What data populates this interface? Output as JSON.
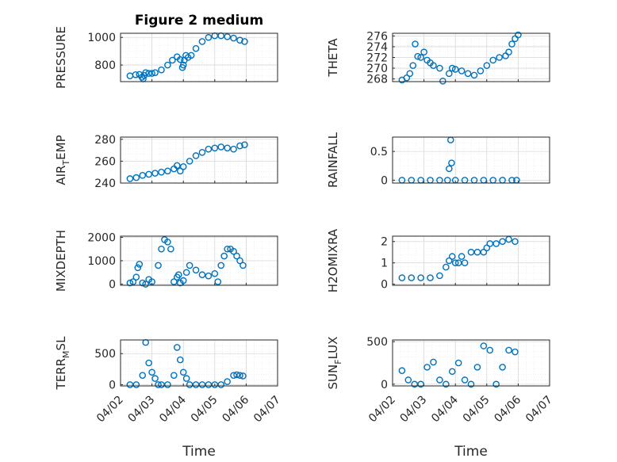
{
  "figure": {
    "title": "Figure 2 medium",
    "marker_color": "#0072BD",
    "x_axis": {
      "label": "Time",
      "ticks": [
        "04/02",
        "04/03",
        "04/04",
        "04/05",
        "04/06",
        "04/07"
      ],
      "xlim": [
        0,
        5
      ]
    }
  },
  "chart_data": [
    {
      "type": "scatter",
      "ylabel": "PRESSURE",
      "ylim": [
        680,
        1030
      ],
      "yticks": [
        800,
        1000
      ],
      "ylabel_sub": "",
      "ylabel_pre": "PRESSURE",
      "ylabel_post": "",
      "x": [
        0.3,
        0.48,
        0.6,
        0.68,
        0.72,
        0.75,
        0.8,
        0.9,
        1.0,
        1.1,
        1.3,
        1.5,
        1.65,
        1.8,
        1.9,
        1.97,
        2.0,
        2.03,
        2.08,
        2.15,
        2.25,
        2.4,
        2.6,
        2.8,
        3.0,
        3.2,
        3.4,
        3.6,
        3.8,
        3.95
      ],
      "y": [
        722,
        730,
        732,
        712,
        700,
        725,
        745,
        740,
        740,
        745,
        765,
        800,
        835,
        860,
        840,
        782,
        800,
        835,
        870,
        855,
        870,
        920,
        970,
        1000,
        1012,
        1012,
        1005,
        995,
        980,
        970
      ]
    },
    {
      "type": "scatter",
      "ylabel": "THETA",
      "ylim": [
        267.5,
        276.5
      ],
      "yticks": [
        268,
        270,
        272,
        274,
        276
      ],
      "ylabel_sub": "",
      "ylabel_pre": "THETA",
      "ylabel_post": "",
      "x": [
        0.3,
        0.45,
        0.55,
        0.65,
        0.72,
        0.8,
        0.9,
        1.0,
        1.1,
        1.2,
        1.3,
        1.5,
        1.6,
        1.8,
        1.9,
        2.0,
        2.2,
        2.4,
        2.6,
        2.8,
        3.0,
        3.2,
        3.4,
        3.6,
        3.7,
        3.8,
        3.9,
        4.0
      ],
      "y": [
        267.8,
        268.2,
        269.0,
        270.5,
        274.5,
        272.2,
        272.0,
        273.0,
        271.5,
        271.0,
        270.5,
        270.0,
        267.6,
        269.0,
        270.0,
        269.8,
        269.5,
        269.0,
        268.7,
        269.5,
        270.5,
        271.5,
        272.0,
        272.3,
        273.0,
        274.5,
        275.5,
        276.2
      ]
    },
    {
      "type": "scatter",
      "ylabel": "AIR_TEMP",
      "ylim": [
        240,
        282
      ],
      "yticks": [
        240,
        260,
        280
      ],
      "ylabel_sub": "T",
      "ylabel_pre": "AIR",
      "ylabel_post": "EMP",
      "x": [
        0.3,
        0.5,
        0.7,
        0.9,
        1.1,
        1.3,
        1.5,
        1.7,
        1.8,
        1.9,
        2.0,
        2.2,
        2.4,
        2.6,
        2.8,
        3.0,
        3.2,
        3.4,
        3.6,
        3.8,
        3.95
      ],
      "y": [
        244,
        245,
        247,
        248,
        249,
        250,
        251,
        253,
        256,
        251,
        255,
        260,
        265,
        268,
        271,
        272,
        273,
        272,
        271,
        274,
        275
      ]
    },
    {
      "type": "scatter",
      "ylabel": "RAINFALL",
      "ylim": [
        -0.05,
        0.75
      ],
      "yticks": [
        0,
        0.5
      ],
      "ylabel_sub": "",
      "ylabel_pre": "RAINFALL",
      "ylabel_post": "",
      "x": [
        0.3,
        0.6,
        0.9,
        1.2,
        1.5,
        1.75,
        1.8,
        1.85,
        1.88,
        2.0,
        2.3,
        2.6,
        2.9,
        3.2,
        3.5,
        3.8,
        3.95
      ],
      "y": [
        0,
        0,
        0,
        0,
        0,
        0,
        0.2,
        0.7,
        0.3,
        0,
        0,
        0,
        0,
        0,
        0,
        0,
        0
      ]
    },
    {
      "type": "scatter",
      "ylabel": "MIXDEPTH",
      "ylim": [
        -50,
        2050
      ],
      "yticks": [
        0,
        1000,
        2000
      ],
      "ylabel_sub": "",
      "ylabel_pre": "MIXDEPTH",
      "ylabel_post": "",
      "x": [
        0.3,
        0.4,
        0.5,
        0.55,
        0.6,
        0.7,
        0.8,
        0.9,
        1.0,
        1.2,
        1.3,
        1.4,
        1.5,
        1.6,
        1.7,
        1.8,
        1.85,
        1.9,
        2.0,
        2.1,
        2.2,
        2.4,
        2.6,
        2.8,
        3.0,
        3.1,
        3.2,
        3.3,
        3.4,
        3.5,
        3.6,
        3.7,
        3.8,
        3.9
      ],
      "y": [
        50,
        100,
        300,
        700,
        850,
        50,
        0,
        200,
        100,
        800,
        1500,
        1900,
        1800,
        1500,
        100,
        300,
        400,
        50,
        150,
        500,
        800,
        600,
        400,
        350,
        450,
        100,
        800,
        1200,
        1500,
        1500,
        1400,
        1200,
        1000,
        800
      ]
    },
    {
      "type": "scatter",
      "ylabel": "H2OMIXRA",
      "ylim": [
        -0.05,
        2.25
      ],
      "yticks": [
        0,
        1,
        2
      ],
      "ylabel_sub": "",
      "ylabel_pre": "H2OMIXRA",
      "ylabel_post": "",
      "x": [
        0.3,
        0.6,
        0.9,
        1.2,
        1.5,
        1.7,
        1.8,
        1.9,
        2.0,
        2.1,
        2.2,
        2.3,
        2.5,
        2.7,
        2.9,
        3.0,
        3.1,
        3.3,
        3.5,
        3.7,
        3.9
      ],
      "y": [
        0.3,
        0.3,
        0.3,
        0.3,
        0.4,
        0.8,
        1.1,
        1.3,
        1.0,
        1.0,
        1.3,
        1.0,
        1.5,
        1.5,
        1.5,
        1.7,
        1.9,
        1.9,
        2.0,
        2.1,
        2.0
      ]
    },
    {
      "type": "scatter",
      "ylabel": "TERR_MSL",
      "ylim": [
        -20,
        720
      ],
      "yticks": [
        0,
        500
      ],
      "ylabel_sub": "M",
      "ylabel_pre": "TERR",
      "ylabel_post": "SL",
      "x": [
        0.3,
        0.5,
        0.7,
        0.8,
        0.9,
        1.0,
        1.1,
        1.2,
        1.3,
        1.5,
        1.7,
        1.8,
        1.9,
        2.0,
        2.1,
        2.2,
        2.4,
        2.6,
        2.8,
        3.0,
        3.2,
        3.4,
        3.6,
        3.7,
        3.8,
        3.9
      ],
      "y": [
        0,
        0,
        150,
        680,
        350,
        200,
        100,
        0,
        0,
        0,
        150,
        600,
        400,
        200,
        100,
        0,
        0,
        0,
        0,
        0,
        0,
        50,
        150,
        160,
        150,
        140
      ]
    },
    {
      "type": "scatter",
      "ylabel": "SUN_FLUX",
      "ylim": [
        -20,
        520
      ],
      "yticks": [
        0,
        500
      ],
      "ylabel_sub": "F",
      "ylabel_pre": "SUN",
      "ylabel_post": "LUX",
      "x": [
        0.3,
        0.5,
        0.7,
        0.9,
        1.1,
        1.3,
        1.5,
        1.7,
        1.9,
        2.1,
        2.3,
        2.5,
        2.7,
        2.9,
        3.1,
        3.3,
        3.5,
        3.7,
        3.9
      ],
      "y": [
        160,
        50,
        0,
        0,
        200,
        260,
        50,
        0,
        150,
        250,
        50,
        0,
        200,
        450,
        400,
        0,
        200,
        400,
        380
      ]
    }
  ]
}
